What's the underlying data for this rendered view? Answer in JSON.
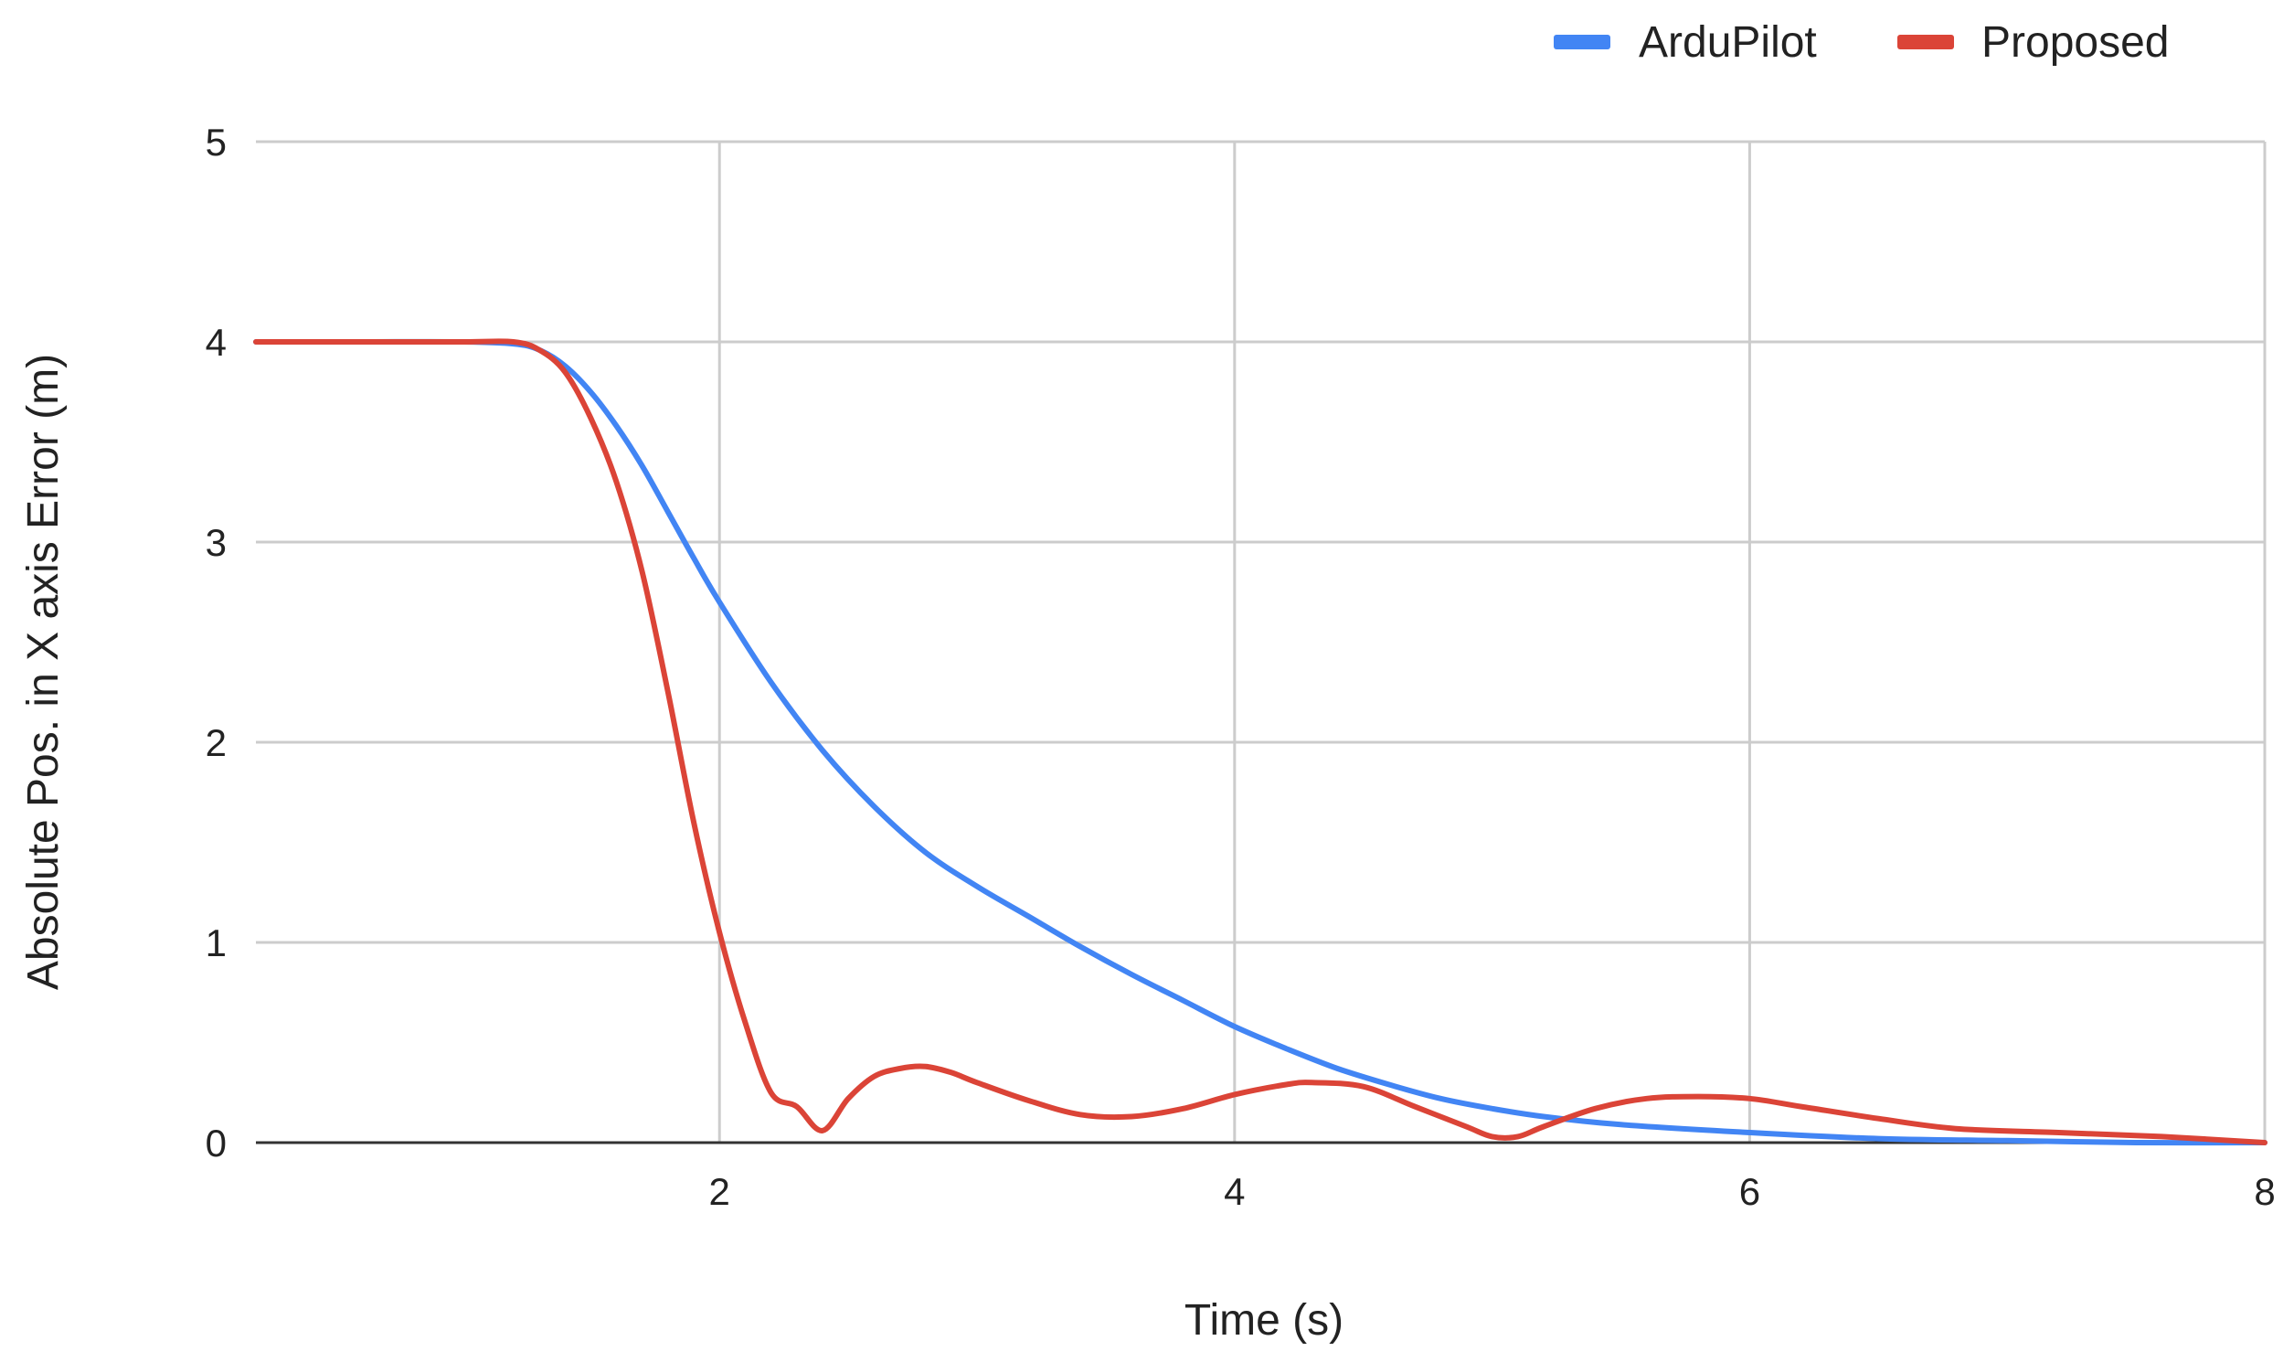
{
  "chart_data": {
    "type": "line",
    "title": "",
    "xlabel": "Time (s)",
    "ylabel": "Absolute Pos. in X axis Error (m)",
    "xlim": [
      0.2,
      8
    ],
    "ylim": [
      0,
      5
    ],
    "x_ticks": [
      2,
      4,
      6,
      8
    ],
    "y_ticks": [
      0,
      1,
      2,
      3,
      4,
      5
    ],
    "grid": true,
    "legend_position": "top-right",
    "series": [
      {
        "name": "ArduPilot",
        "color": "#4285f4",
        "points": [
          [
            0.2,
            4.0
          ],
          [
            0.6,
            4.0
          ],
          [
            1.0,
            4.0
          ],
          [
            1.2,
            3.99
          ],
          [
            1.3,
            3.96
          ],
          [
            1.4,
            3.88
          ],
          [
            1.5,
            3.75
          ],
          [
            1.6,
            3.58
          ],
          [
            1.7,
            3.38
          ],
          [
            1.8,
            3.15
          ],
          [
            1.9,
            2.92
          ],
          [
            2.0,
            2.7
          ],
          [
            2.2,
            2.3
          ],
          [
            2.4,
            1.96
          ],
          [
            2.6,
            1.68
          ],
          [
            2.8,
            1.45
          ],
          [
            3.0,
            1.28
          ],
          [
            3.2,
            1.13
          ],
          [
            3.4,
            0.98
          ],
          [
            3.6,
            0.84
          ],
          [
            3.8,
            0.71
          ],
          [
            4.0,
            0.58
          ],
          [
            4.2,
            0.47
          ],
          [
            4.4,
            0.37
          ],
          [
            4.6,
            0.29
          ],
          [
            4.8,
            0.22
          ],
          [
            5.0,
            0.17
          ],
          [
            5.2,
            0.13
          ],
          [
            5.5,
            0.09
          ],
          [
            6.0,
            0.05
          ],
          [
            6.5,
            0.02
          ],
          [
            7.0,
            0.01
          ],
          [
            7.5,
            0.0
          ],
          [
            8.0,
            0.0
          ]
        ]
      },
      {
        "name": "Proposed",
        "color": "#db4437",
        "points": [
          [
            0.2,
            4.0
          ],
          [
            0.6,
            4.0
          ],
          [
            1.0,
            4.0
          ],
          [
            1.2,
            4.0
          ],
          [
            1.3,
            3.96
          ],
          [
            1.4,
            3.85
          ],
          [
            1.5,
            3.62
          ],
          [
            1.6,
            3.3
          ],
          [
            1.7,
            2.85
          ],
          [
            1.8,
            2.25
          ],
          [
            1.9,
            1.6
          ],
          [
            2.0,
            1.05
          ],
          [
            2.1,
            0.6
          ],
          [
            2.2,
            0.25
          ],
          [
            2.3,
            0.18
          ],
          [
            2.4,
            0.06
          ],
          [
            2.5,
            0.22
          ],
          [
            2.6,
            0.33
          ],
          [
            2.7,
            0.37
          ],
          [
            2.8,
            0.38
          ],
          [
            2.9,
            0.35
          ],
          [
            3.0,
            0.3
          ],
          [
            3.2,
            0.21
          ],
          [
            3.4,
            0.14
          ],
          [
            3.6,
            0.13
          ],
          [
            3.8,
            0.17
          ],
          [
            4.0,
            0.24
          ],
          [
            4.2,
            0.29
          ],
          [
            4.3,
            0.3
          ],
          [
            4.5,
            0.28
          ],
          [
            4.7,
            0.18
          ],
          [
            4.9,
            0.08
          ],
          [
            5.0,
            0.03
          ],
          [
            5.1,
            0.03
          ],
          [
            5.2,
            0.08
          ],
          [
            5.4,
            0.17
          ],
          [
            5.6,
            0.22
          ],
          [
            5.8,
            0.23
          ],
          [
            6.0,
            0.22
          ],
          [
            6.2,
            0.18
          ],
          [
            6.5,
            0.12
          ],
          [
            6.8,
            0.07
          ],
          [
            7.2,
            0.05
          ],
          [
            7.6,
            0.03
          ],
          [
            8.0,
            0.0
          ]
        ]
      }
    ]
  }
}
